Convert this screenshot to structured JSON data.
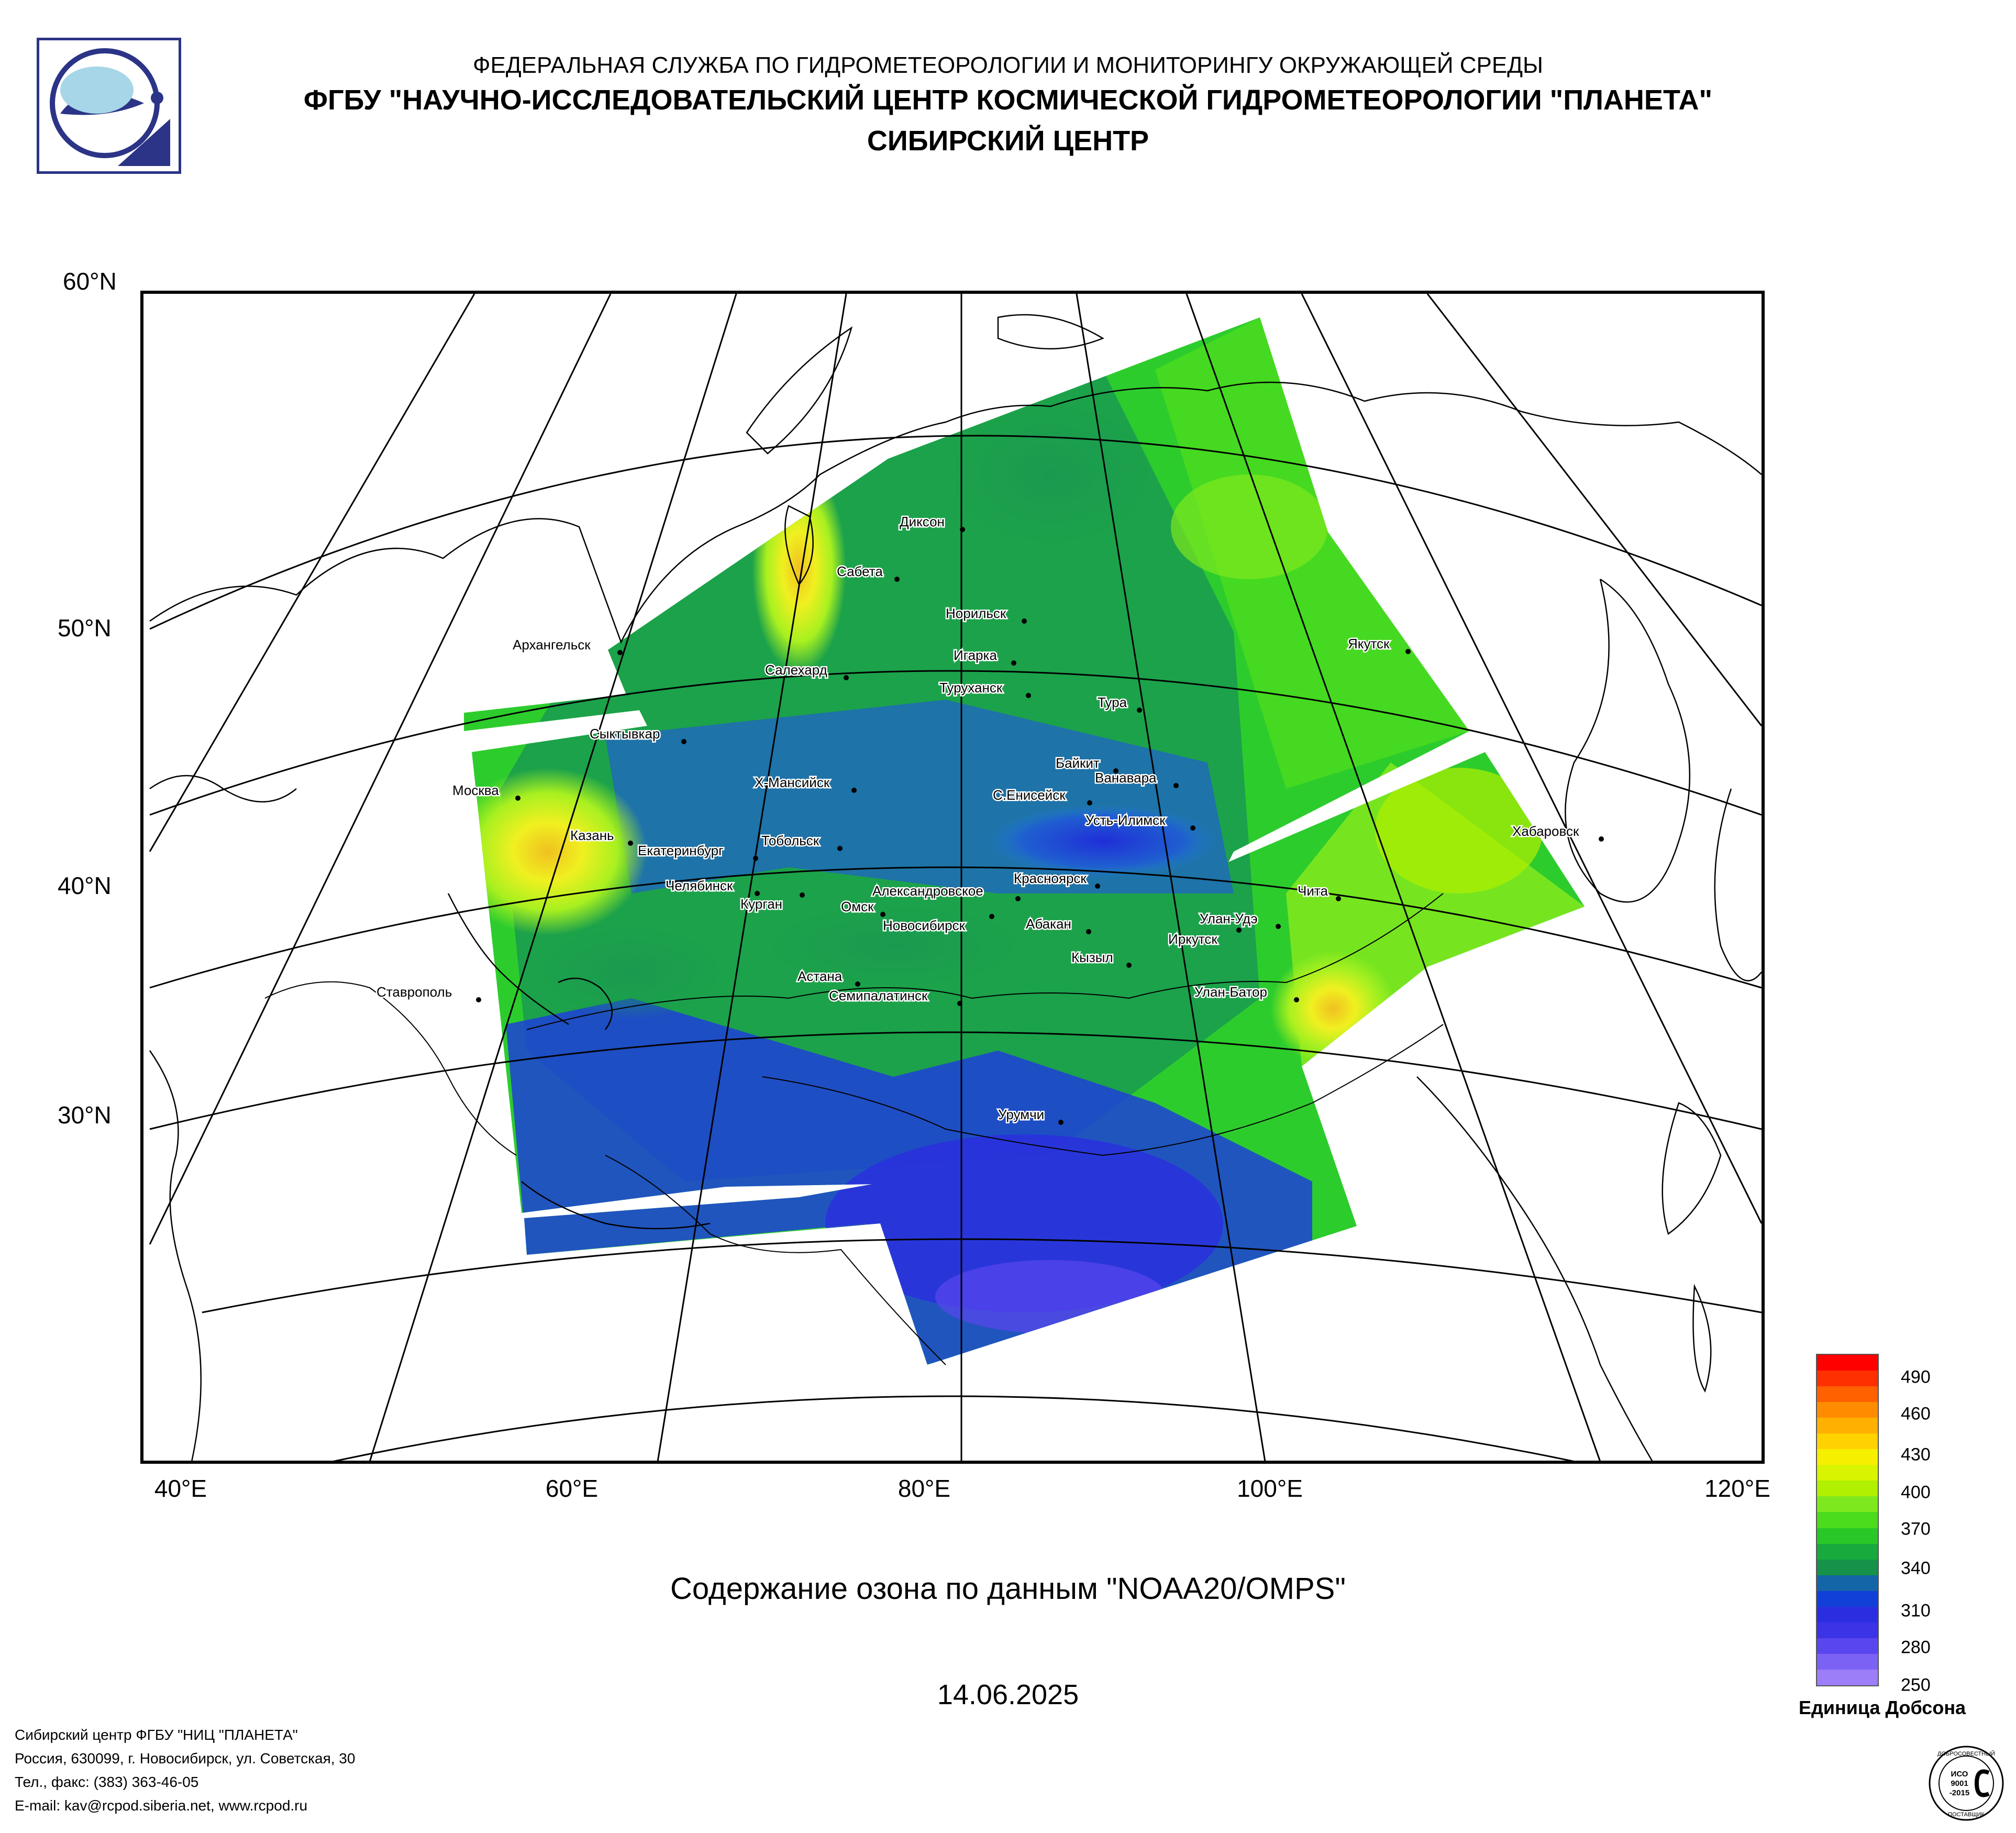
{
  "header": {
    "org_line1": "ФЕДЕРАЛЬНАЯ СЛУЖБА ПО ГИДРОМЕТЕОРОЛОГИИ И МОНИТОРИНГУ ОКРУЖАЮЩЕЙ СРЕДЫ",
    "org_line2": "ФГБУ \"НАУЧНО-ИССЛЕДОВАТЕЛЬСКИЙ ЦЕНТР КОСМИЧЕСКОЙ ГИДРОМЕТЕОРОЛОГИИ \"ПЛАНЕТА\"",
    "org_line3": "СИБИРСКИЙ ЦЕНТР",
    "logo_icon": "planeta-logo-icon"
  },
  "map": {
    "latitude_labels": [
      "60°N",
      "50°N",
      "40°N",
      "30°N"
    ],
    "longitude_labels": [
      "40°E",
      "60°E",
      "80°E",
      "100°E",
      "120°E"
    ],
    "cities": [
      "Диксон",
      "Сабета",
      "Норильск",
      "Игарка",
      "Туруханск",
      "Салехард",
      "Тура",
      "Якутск",
      "Архангельск",
      "Сыктывкар",
      "Байкит",
      "Ванавара",
      "Х-Мансийск",
      "С.Енисейск",
      "Москва",
      "Усть-Илимск",
      "Хабаровск",
      "Казань",
      "Тобольск",
      "Екатеринбург",
      "Челябинск",
      "Курган",
      "Александровское",
      "Омск",
      "Новосибирск",
      "Красноярск",
      "Абакан",
      "Улан-Удэ",
      "Чита",
      "Иркутск",
      "Кызыл",
      "Астана",
      "Семипалатинск",
      "Улан-Батор",
      "Ставрополь",
      "Урумчи"
    ],
    "colors": {
      "very_low": "#7f5fff",
      "low": "#1f2fd8",
      "low_mid": "#1f7fd0",
      "mid": "#1a9a50",
      "mid_high": "#2dcc2d",
      "high": "#a8f020",
      "very_high": "#f0f020",
      "peak": "#f0c020"
    }
  },
  "title": "Содержание озона по данным \"NOAA20/OMPS\"",
  "date": "14.06.2025",
  "legend": {
    "ticks": [
      "490",
      "460",
      "430",
      "400",
      "370",
      "340",
      "310",
      "280",
      "250"
    ],
    "unit": "Единица Добсона",
    "colors": [
      "#ff0000",
      "#ff3000",
      "#ff6000",
      "#ff8c00",
      "#ffb000",
      "#ffd200",
      "#f6f000",
      "#d8f400",
      "#b0f000",
      "#7ee81e",
      "#4cdc1e",
      "#28c828",
      "#18aa3c",
      "#16924a",
      "#1464a8",
      "#1040d8",
      "#2a2ee0",
      "#3c32e6",
      "#5a46ee",
      "#7c62f4",
      "#9c7ef8"
    ]
  },
  "footer": {
    "line1": "Сибирский центр ФГБУ \"НИЦ \"ПЛАНЕТА\"",
    "line2": "Россия, 630099, г. Новосибирск, ул. Советская, 30",
    "line3": "Тел., факс: (383) 363-46-05",
    "line4": "E-mail: kav@rcpod.siberia.net, www.rcpod.ru"
  },
  "iso_badge": {
    "top_text": "ДОБРОСОВЕСТНЫЙ",
    "line1": "ИСО",
    "line2": "9001",
    "line3": "-2015",
    "bottom_text": "ПОСТАВЩИК"
  }
}
